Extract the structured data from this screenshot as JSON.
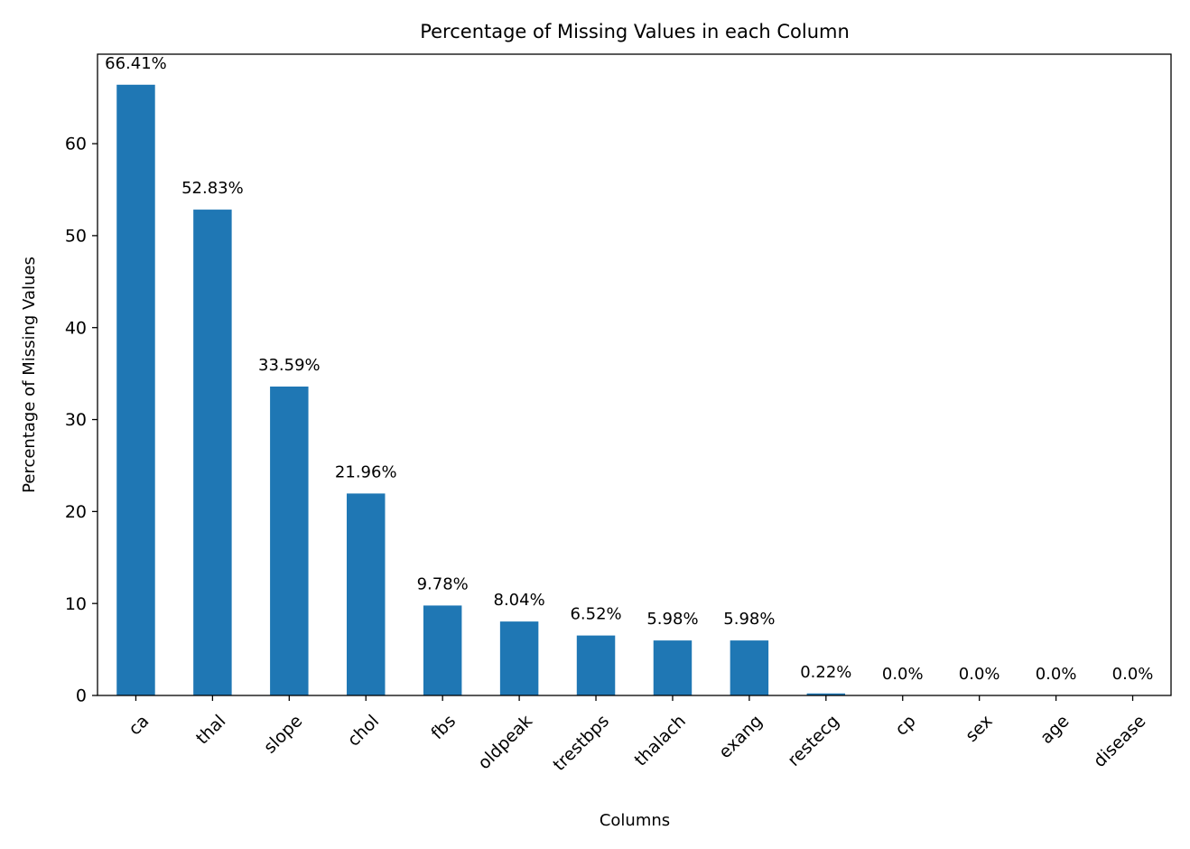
{
  "chart_data": {
    "type": "bar",
    "title": "Percentage of Missing Values in each Column",
    "xlabel": "Columns",
    "ylabel": "Percentage of Missing Values",
    "categories": [
      "ca",
      "thal",
      "slope",
      "chol",
      "fbs",
      "oldpeak",
      "trestbps",
      "thalach",
      "exang",
      "restecg",
      "cp",
      "sex",
      "age",
      "disease"
    ],
    "values": [
      66.41,
      52.83,
      33.59,
      21.96,
      9.78,
      8.04,
      6.52,
      5.98,
      5.98,
      0.22,
      0.0,
      0.0,
      0.0,
      0.0
    ],
    "data_labels": [
      "66.41%",
      "52.83%",
      "33.59%",
      "21.96%",
      "9.78%",
      "8.04%",
      "6.52%",
      "5.98%",
      "5.98%",
      "0.22%",
      "0.0%",
      "0.0%",
      "0.0%",
      "0.0%"
    ],
    "yticks": [
      0,
      10,
      20,
      30,
      40,
      50,
      60
    ],
    "ylim": [
      0,
      69.73
    ],
    "grid": false,
    "legend": "none",
    "bar_color": "#1f77b4"
  }
}
